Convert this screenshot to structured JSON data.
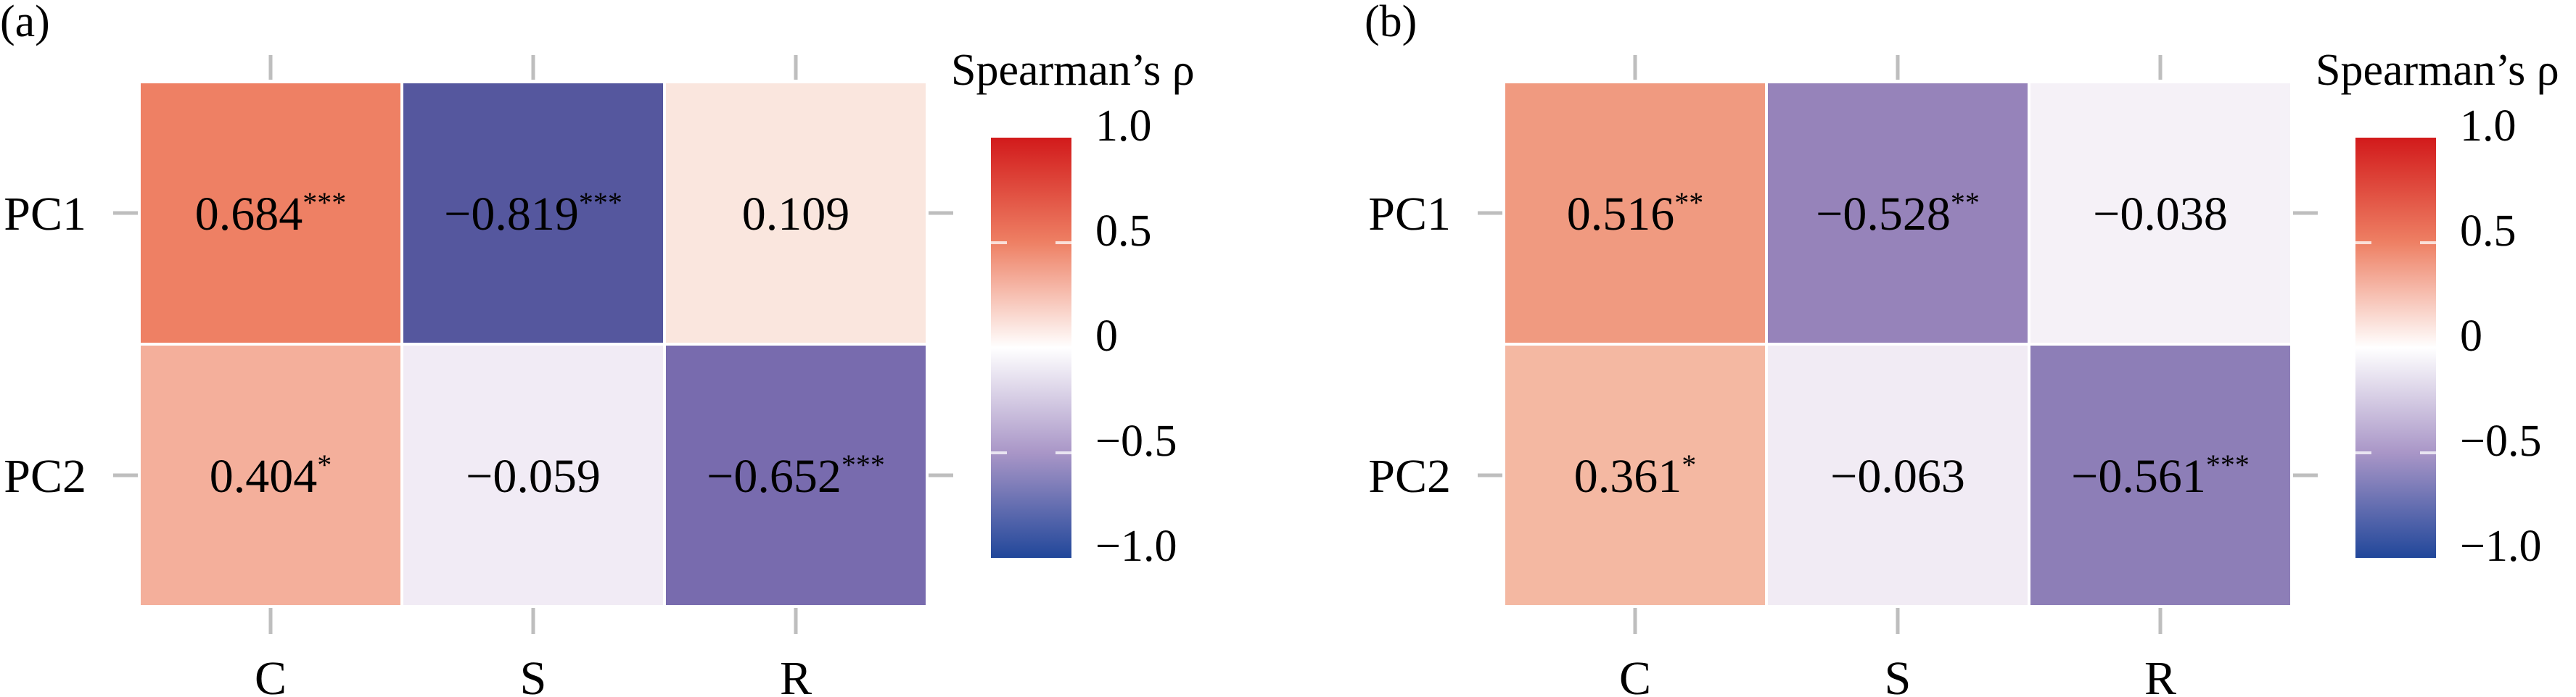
{
  "chart_data": [
    {
      "type": "heatmap",
      "panel_label": "(a)",
      "x_categories": [
        "C",
        "S",
        "R"
      ],
      "y_categories": [
        "PC1",
        "PC2"
      ],
      "values": [
        [
          0.684,
          -0.819,
          0.109
        ],
        [
          0.404,
          -0.059,
          -0.652
        ]
      ],
      "significance": [
        [
          "***",
          "***",
          ""
        ],
        [
          "*",
          "",
          "***"
        ]
      ],
      "value_labels": [
        [
          "0.684",
          "−0.819",
          "0.109"
        ],
        [
          "0.404",
          "−0.059",
          "−0.652"
        ]
      ],
      "cell_colors": [
        [
          "#ee8064",
          "#55579e",
          "#fae6de"
        ],
        [
          "#f4af9b",
          "#f1ebf5",
          "#786bae"
        ]
      ],
      "legend": {
        "title": "Spearman’s ρ",
        "range": [
          -1.0,
          1.0
        ],
        "ticks": [
          1.0,
          0.5,
          0,
          -0.5,
          -1.0
        ],
        "tick_labels": [
          "1.0",
          "0.5",
          "0",
          "−0.5",
          "−1.0"
        ],
        "placement": "right"
      }
    },
    {
      "type": "heatmap",
      "panel_label": "(b)",
      "x_categories": [
        "C",
        "S",
        "R"
      ],
      "y_categories": [
        "PC1",
        "PC2"
      ],
      "values": [
        [
          0.516,
          -0.528,
          -0.038
        ],
        [
          0.361,
          -0.063,
          -0.561
        ]
      ],
      "significance": [
        [
          "**",
          "**",
          ""
        ],
        [
          "*",
          "",
          "***"
        ]
      ],
      "value_labels": [
        [
          "0.516",
          "−0.528",
          "−0.038"
        ],
        [
          "0.361",
          "−0.063",
          "−0.561"
        ]
      ],
      "cell_colors": [
        [
          "#f09a80",
          "#9683ba",
          "#f5f1f7"
        ],
        [
          "#f4b8a2",
          "#f1ebf4",
          "#8d7eb7"
        ]
      ],
      "legend": {
        "title": "Spearman’s ρ",
        "range": [
          -1.0,
          1.0
        ],
        "ticks": [
          1.0,
          0.5,
          0,
          -0.5,
          -1.0
        ],
        "tick_labels": [
          "1.0",
          "0.5",
          "0",
          "−0.5",
          "−1.0"
        ],
        "placement": "right"
      }
    }
  ],
  "colorscale": {
    "low": "#21479a",
    "mid_low": "#5a569e",
    "zero": "#ffffff",
    "mid_high": "#ee8064",
    "high": "#d21a1b"
  }
}
